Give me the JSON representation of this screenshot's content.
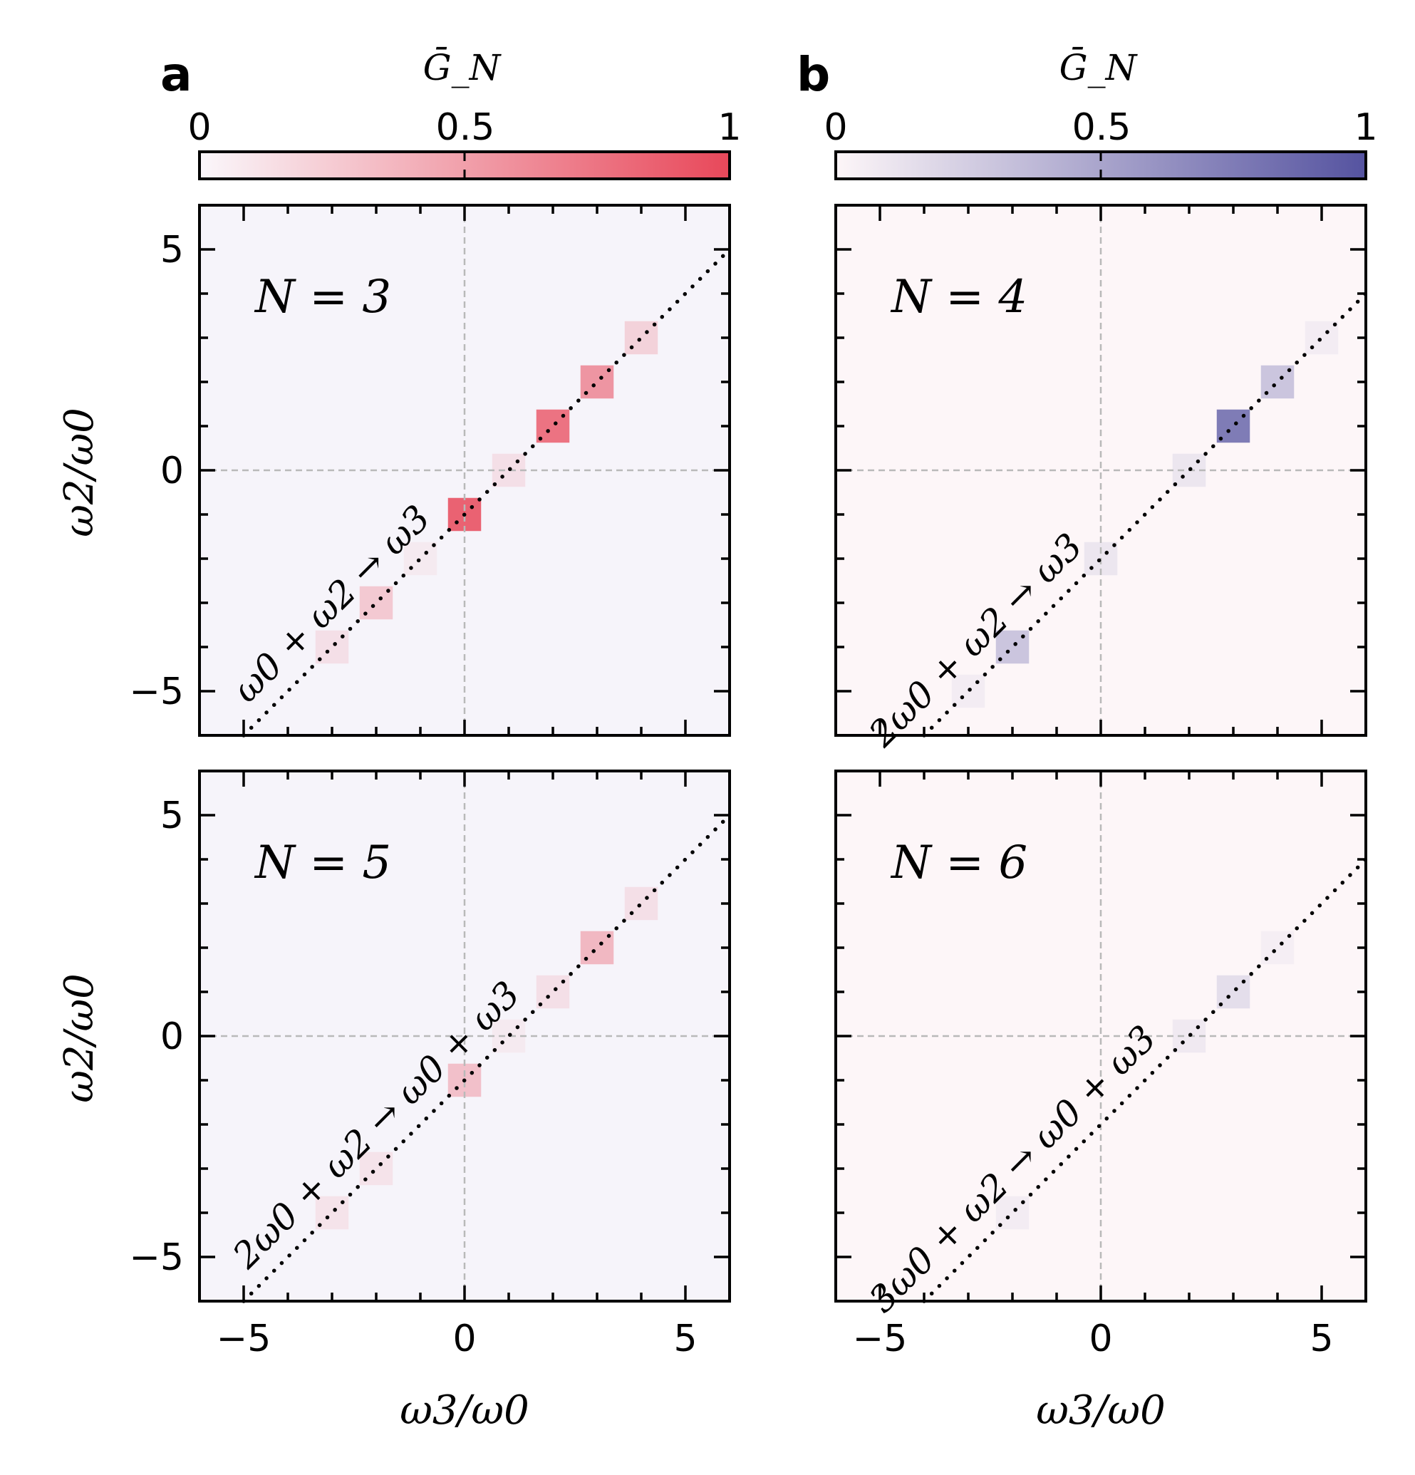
{
  "panel_labels": [
    "a",
    "b"
  ],
  "colorbars": [
    {
      "label": "Ḡ_N",
      "ticks": [
        "0",
        "0.5",
        "1"
      ],
      "color_low": "#faf7fb",
      "color_high": "#e8485a"
    },
    {
      "label": "Ḡ_N",
      "ticks": [
        "0",
        "0.5",
        "1"
      ],
      "color_low": "#fdf6f8",
      "color_high": "#5553a0"
    }
  ],
  "axes": {
    "xlabel": "ω3/ω0",
    "ylabel": "ω2/ω0",
    "major_ticks": [
      -5,
      0,
      5
    ],
    "tick_labels": [
      "−5",
      "0",
      "5"
    ]
  },
  "chart_data": [
    {
      "type": "heatmap",
      "panel": "a",
      "title": "N = 3",
      "annotation": "ω0 + ω2 → ω3",
      "xlabel": "",
      "ylabel": "ω2/ω0",
      "xlim": [
        -6,
        6
      ],
      "ylim": [
        -6,
        6
      ],
      "diagonal_line": {
        "slope": 1,
        "intercept": -1
      },
      "background": "#f6f4fa",
      "colormap": "red",
      "cells": [
        {
          "x": 0,
          "y": -1,
          "v": 0.85
        },
        {
          "x": 2,
          "y": 1,
          "v": 0.75
        },
        {
          "x": 3,
          "y": 2,
          "v": 0.55
        },
        {
          "x": 1,
          "y": 0,
          "v": 0.12
        },
        {
          "x": 4,
          "y": 3,
          "v": 0.2
        },
        {
          "x": -2,
          "y": -3,
          "v": 0.25
        },
        {
          "x": -3,
          "y": -4,
          "v": 0.12
        },
        {
          "x": -1,
          "y": -2,
          "v": 0.06
        }
      ]
    },
    {
      "type": "heatmap",
      "panel": "b",
      "title": "N = 4",
      "annotation": "2ω0 + ω2 → ω3",
      "xlabel": "",
      "ylabel": "",
      "xlim": [
        -6,
        6
      ],
      "ylim": [
        -6,
        6
      ],
      "diagonal_line": {
        "slope": 1,
        "intercept": -2
      },
      "background": "#fdf6f8",
      "colormap": "blue",
      "cells": [
        {
          "x": 3,
          "y": 1,
          "v": 0.75
        },
        {
          "x": 4,
          "y": 2,
          "v": 0.3
        },
        {
          "x": -2,
          "y": -4,
          "v": 0.3
        },
        {
          "x": 2,
          "y": 0,
          "v": 0.1
        },
        {
          "x": 0,
          "y": -2,
          "v": 0.1
        },
        {
          "x": 5,
          "y": 3,
          "v": 0.06
        },
        {
          "x": -3,
          "y": -5,
          "v": 0.06
        }
      ]
    },
    {
      "type": "heatmap",
      "panel": "a",
      "title": "N = 5",
      "annotation": "2ω0 + ω2 → ω0 + ω3",
      "xlabel": "ω3/ω0",
      "ylabel": "ω2/ω0",
      "xlim": [
        -6,
        6
      ],
      "ylim": [
        -6,
        6
      ],
      "diagonal_line": {
        "slope": 1,
        "intercept": -1
      },
      "background": "#f6f4fa",
      "colormap": "red",
      "cells": [
        {
          "x": 3,
          "y": 2,
          "v": 0.35
        },
        {
          "x": 0,
          "y": -1,
          "v": 0.3
        },
        {
          "x": 2,
          "y": 1,
          "v": 0.12
        },
        {
          "x": 4,
          "y": 3,
          "v": 0.12
        },
        {
          "x": -2,
          "y": -3,
          "v": 0.1
        },
        {
          "x": -3,
          "y": -4,
          "v": 0.1
        },
        {
          "x": 1,
          "y": 0,
          "v": 0.06
        }
      ]
    },
    {
      "type": "heatmap",
      "panel": "b",
      "title": "N = 6",
      "annotation": "3ω0 + ω2 → ω0 + ω3",
      "xlabel": "ω3/ω0",
      "ylabel": "",
      "xlim": [
        -6,
        6
      ],
      "ylim": [
        -6,
        6
      ],
      "diagonal_line": {
        "slope": 1,
        "intercept": -2
      },
      "background": "#fdf6f8",
      "colormap": "blue",
      "cells": [
        {
          "x": 3,
          "y": 1,
          "v": 0.15
        },
        {
          "x": 2,
          "y": 0,
          "v": 0.08
        },
        {
          "x": -2,
          "y": -4,
          "v": 0.06
        },
        {
          "x": 4,
          "y": 2,
          "v": 0.05
        }
      ]
    }
  ]
}
